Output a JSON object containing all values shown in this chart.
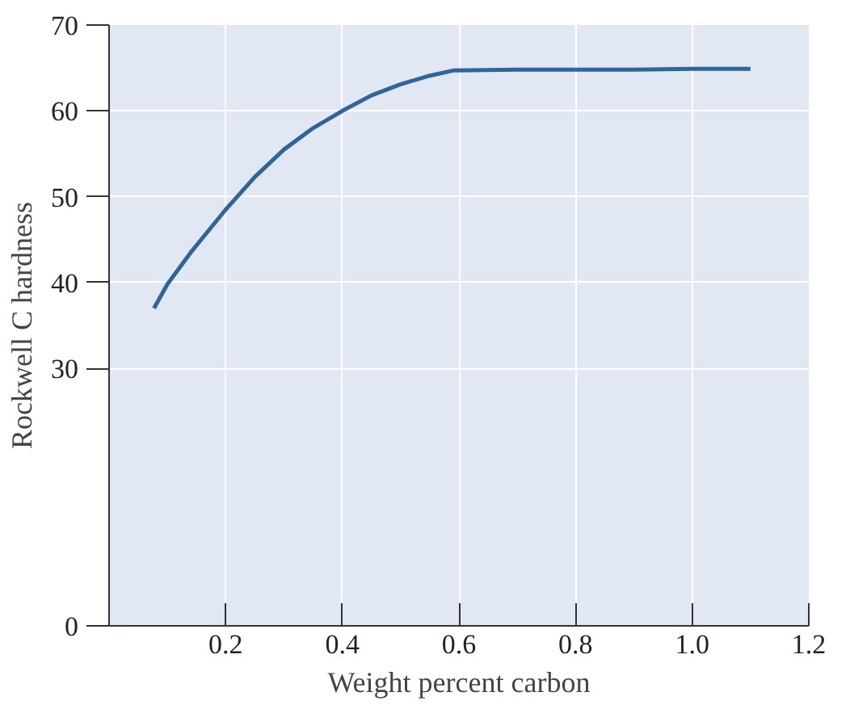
{
  "chart_data": {
    "type": "line",
    "xlabel": "Weight percent carbon",
    "ylabel": "Rockwell C hardness",
    "series": [
      {
        "color": "#2f6598",
        "x": [
          0.077,
          0.1,
          0.14,
          0.2,
          0.25,
          0.3,
          0.35,
          0.4,
          0.45,
          0.5,
          0.55,
          0.59,
          0.7,
          0.8,
          0.9,
          1.0,
          1.1
        ],
        "values": [
          37,
          39.8,
          43.5,
          48.5,
          52.3,
          55.5,
          58,
          60,
          61.8,
          63.1,
          64.1,
          64.7,
          64.8,
          64.8,
          64.8,
          64.9,
          64.9
        ]
      }
    ],
    "xlim": [
      0,
      1.2
    ],
    "xticks": [
      {
        "value": 0,
        "label": null
      },
      0.2,
      0.4,
      0.6,
      0.8,
      {
        "value": 1.0,
        "label": "1.0"
      },
      1.2
    ],
    "ylim": [
      0,
      70
    ],
    "yticks": [
      0,
      30,
      40,
      50,
      60,
      70
    ],
    "grid": true,
    "marker": "none",
    "line_style": "solid"
  }
}
